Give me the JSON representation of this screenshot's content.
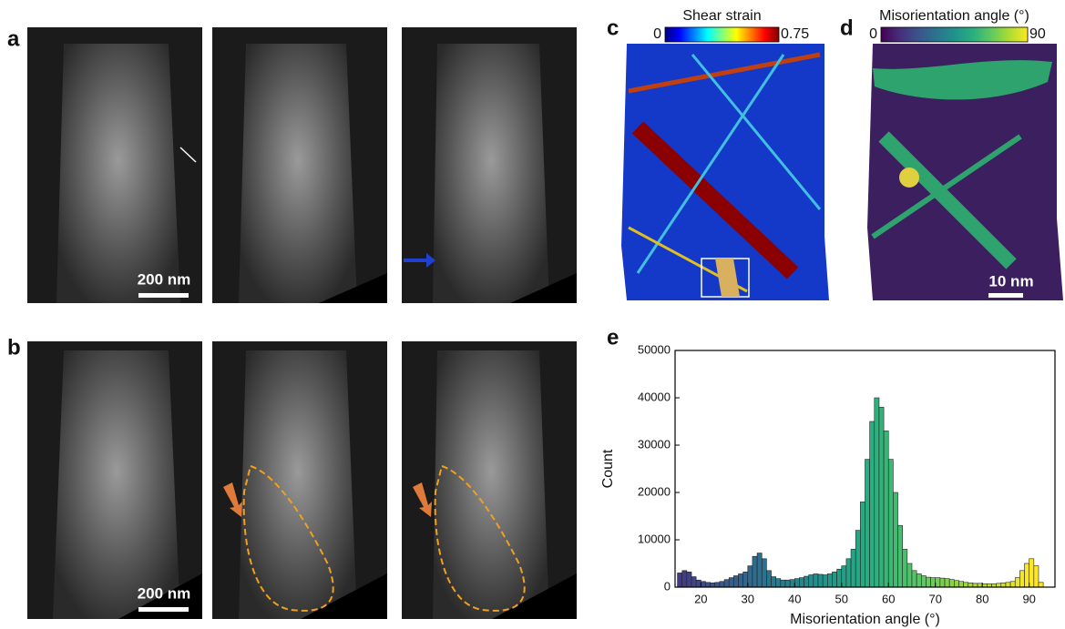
{
  "figure": {
    "panel_labels": [
      "a",
      "b",
      "c",
      "d",
      "e"
    ],
    "scale_bars": [
      "200 nm",
      "200 nm",
      "10 nm"
    ]
  },
  "chart_data": [
    {
      "type": "colorbar",
      "title": "Shear strain",
      "clim": [
        0,
        0.75
      ],
      "ticks": [
        0,
        0.75
      ],
      "colormap": "jet"
    },
    {
      "type": "colorbar",
      "title": "Misorientation angle (°)",
      "clim": [
        0,
        90
      ],
      "ticks": [
        0,
        90
      ],
      "colormap": "viridis"
    },
    {
      "type": "histogram",
      "xlabel": "Misorientation angle (°)",
      "ylabel": "Count",
      "bins": [
        15,
        16,
        17,
        18,
        19,
        20,
        21,
        22,
        23,
        24,
        25,
        26,
        27,
        28,
        29,
        30,
        31,
        32,
        33,
        34,
        35,
        36,
        37,
        38,
        39,
        40,
        41,
        42,
        43,
        44,
        45,
        46,
        47,
        48,
        49,
        50,
        51,
        52,
        53,
        54,
        55,
        56,
        57,
        58,
        59,
        60,
        61,
        62,
        63,
        64,
        65,
        66,
        67,
        68,
        69,
        70,
        71,
        72,
        73,
        74,
        75,
        76,
        77,
        78,
        79,
        80,
        81,
        82,
        83,
        84,
        85,
        86,
        87,
        88,
        89,
        90,
        91,
        92,
        93
      ],
      "counts": [
        3000,
        3500,
        3200,
        2200,
        1500,
        1200,
        1000,
        900,
        1000,
        1200,
        1600,
        2000,
        2400,
        2800,
        3200,
        4500,
        6500,
        7200,
        6000,
        3500,
        2200,
        1800,
        1500,
        1500,
        1600,
        1800,
        2000,
        2300,
        2600,
        2800,
        2700,
        2600,
        2800,
        3200,
        3800,
        4500,
        6000,
        8000,
        12000,
        18000,
        27000,
        35000,
        40000,
        38000,
        33000,
        27000,
        20000,
        13000,
        8000,
        5000,
        3500,
        2800,
        2400,
        2100,
        2000,
        2000,
        1900,
        1800,
        1600,
        1400,
        1200,
        1000,
        900,
        800,
        800,
        700,
        700,
        700,
        800,
        900,
        1000,
        1200,
        2000,
        3500,
        5000,
        6000,
        4500,
        1000
      ],
      "xlim": [
        14.5,
        95.5
      ],
      "ylim": [
        0,
        50000
      ],
      "xticks": [
        20,
        30,
        40,
        50,
        60,
        70,
        80,
        90
      ],
      "yticks": [
        0,
        10000,
        20000,
        30000,
        40000,
        50000
      ],
      "colormap": "viridis",
      "clim": [
        0,
        90
      ],
      "edgecolor": "#222222"
    }
  ]
}
